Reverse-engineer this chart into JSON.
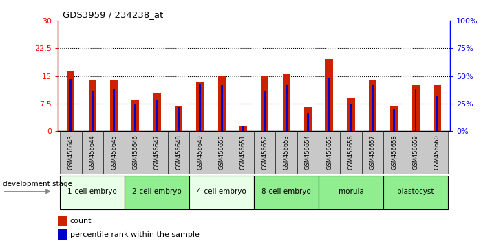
{
  "title": "GDS3959 / 234238_at",
  "samples": [
    "GSM456643",
    "GSM456644",
    "GSM456645",
    "GSM456646",
    "GSM456647",
    "GSM456648",
    "GSM456649",
    "GSM456650",
    "GSM456651",
    "GSM456652",
    "GSM456653",
    "GSM456654",
    "GSM456655",
    "GSM456656",
    "GSM456657",
    "GSM456658",
    "GSM456659",
    "GSM456660"
  ],
  "count_values": [
    16.5,
    14.0,
    14.0,
    8.5,
    10.5,
    7.0,
    13.5,
    15.0,
    1.5,
    15.0,
    15.5,
    6.5,
    19.5,
    9.0,
    14.0,
    7.0,
    12.5,
    12.5
  ],
  "percentile_values": [
    47,
    37,
    38,
    25,
    28,
    22,
    43,
    42,
    5,
    37,
    42,
    16,
    48,
    25,
    42,
    20,
    38,
    32
  ],
  "stages": [
    {
      "label": "1-cell embryo",
      "start": 0,
      "end": 3,
      "color": "#e8ffe8"
    },
    {
      "label": "2-cell embryo",
      "start": 3,
      "end": 6,
      "color": "#90ee90"
    },
    {
      "label": "4-cell embryo",
      "start": 6,
      "end": 9,
      "color": "#e8ffe8"
    },
    {
      "label": "8-cell embryo",
      "start": 9,
      "end": 12,
      "color": "#90ee90"
    },
    {
      "label": "morula",
      "start": 12,
      "end": 15,
      "color": "#90ee90"
    },
    {
      "label": "blastocyst",
      "start": 15,
      "end": 18,
      "color": "#90ee90"
    }
  ],
  "ylim_left": [
    0,
    30
  ],
  "ylim_right": [
    0,
    100
  ],
  "yticks_left": [
    0,
    7.5,
    15,
    22.5,
    30
  ],
  "yticks_right": [
    0,
    25,
    50,
    75,
    100
  ],
  "ytick_labels_left": [
    "0",
    "7.5",
    "15",
    "22.5",
    "30"
  ],
  "ytick_labels_right": [
    "0%",
    "25%",
    "50%",
    "75%",
    "100%"
  ],
  "bar_color": "#cc2200",
  "percentile_color": "#0000cc",
  "tick_bg_color": "#c8c8c8",
  "development_stage_label": "development stage"
}
